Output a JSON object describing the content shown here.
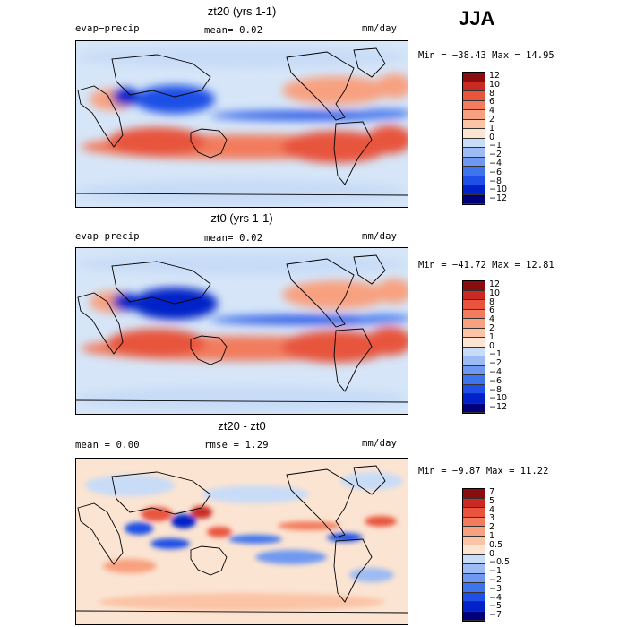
{
  "season": "JJA",
  "colors": {
    "main_scale": [
      "#00007a",
      "#0022c8",
      "#1f4fe6",
      "#3f74ee",
      "#6f99f0",
      "#9dbcf3",
      "#c8dcf7",
      "#fbe4d2",
      "#fbc4a6",
      "#f8a180",
      "#f27c5d",
      "#e8553c",
      "#cb2a22",
      "#8a0d0d"
    ],
    "diff_scale": [
      "#00007a",
      "#0022c8",
      "#1f4fe6",
      "#3f74ee",
      "#6f99f0",
      "#9dbcf3",
      "#c8dcf7",
      "#fbe4d2",
      "#fbc4a6",
      "#f8a180",
      "#f27c5d",
      "#e8553c",
      "#cb2a22",
      "#8a0d0d"
    ]
  },
  "panels": [
    {
      "title": "zt20 (yrs 1-1)",
      "left_label": "evap−precip",
      "center_label": "mean=   0.02",
      "units": "mm/day",
      "minmax": "Min = −38.43 Max =  14.95",
      "colorbar_labels": [
        "12",
        "10",
        "8",
        "6",
        "4",
        "2",
        "1",
        "0",
        "−1",
        "−2",
        "−4",
        "−6",
        "−8",
        "−10",
        "−12"
      ]
    },
    {
      "title": "zt0 (yrs 1-1)",
      "left_label": "evap−precip",
      "center_label": "mean=   0.02",
      "units": "mm/day",
      "minmax": "Min = −41.72 Max =  12.81",
      "colorbar_labels": [
        "12",
        "10",
        "8",
        "6",
        "4",
        "2",
        "1",
        "0",
        "−1",
        "−2",
        "−4",
        "−6",
        "−8",
        "−10",
        "−12"
      ]
    },
    {
      "title": "zt20 - zt0",
      "left_label": "mean =   0.00",
      "center_label": "rmse =   1.29",
      "units": "mm/day",
      "minmax": "Min =  −9.87 Max =  11.22",
      "colorbar_labels": [
        "7",
        "5",
        "4",
        "3",
        "2",
        "1",
        "0.5",
        "0",
        "−0.5",
        "−1",
        "−2",
        "−3",
        "−4",
        "−5",
        "−7"
      ]
    }
  ]
}
